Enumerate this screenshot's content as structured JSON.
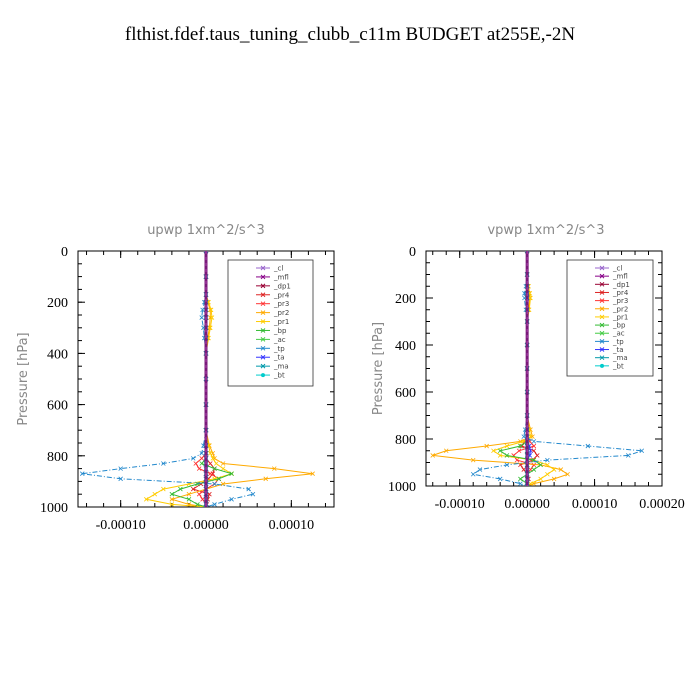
{
  "title": "flthist.fdef.taus_tuning_clubb_c11m  BUDGET at255E,-2N",
  "chart_data": [
    {
      "type": "line",
      "title": "upwp   1xm^2/s^3",
      "ylabel": "Pressure [hPa]",
      "xlabel": "",
      "ylim": [
        1000,
        0
      ],
      "xlim": [
        -0.00015,
        0.00015
      ],
      "xticks": [
        -0.0001,
        0.0,
        0.0001
      ],
      "xtick_labels": [
        "-0.00010",
        "0.00000",
        "0.00010"
      ],
      "yticks": [
        0,
        200,
        400,
        600,
        800,
        1000
      ],
      "ytick_labels": [
        "0",
        "200",
        "400",
        "600",
        "800",
        "1000"
      ],
      "legend": "top-right",
      "y": [
        0,
        100,
        170,
        200,
        230,
        260,
        300,
        340,
        400,
        500,
        600,
        700,
        760,
        790,
        810,
        830,
        850,
        870,
        890,
        910,
        930,
        950,
        970,
        990,
        1000
      ],
      "series": [
        {
          "name": "_cl",
          "color": "#9966cc",
          "marker": "x",
          "values": [
            0,
            0,
            0,
            0,
            0,
            0,
            0,
            0,
            0,
            0,
            0,
            0,
            0,
            0,
            0,
            0,
            0,
            0,
            0,
            0,
            0,
            0,
            0,
            0,
            0
          ]
        },
        {
          "name": "_mfl",
          "color": "#880088",
          "marker": "x",
          "values": [
            0,
            0,
            0,
            0,
            0,
            0,
            0,
            0,
            0,
            0,
            0,
            0,
            0,
            0,
            0,
            0,
            0,
            0,
            0,
            0,
            0,
            0,
            0,
            0,
            0
          ]
        },
        {
          "name": "_dp1",
          "color": "#990033",
          "marker": "x",
          "values": [
            0,
            0,
            0,
            0,
            0,
            0,
            0,
            0,
            0,
            0,
            0,
            0,
            0,
            0,
            0,
            0,
            0,
            0,
            0,
            0,
            0,
            0,
            0,
            0,
            0
          ]
        },
        {
          "name": "_pr4",
          "color": "#dd2222",
          "marker": "x",
          "values": [
            0,
            0,
            0,
            0,
            0,
            0,
            0,
            0,
            0,
            0,
            0,
            0,
            0,
            0,
            0,
            5e-06,
            1e-05,
            8e-06,
            3e-06,
            -6e-06,
            -1.5e-05,
            4e-06,
            2e-06,
            1e-06,
            0
          ]
        },
        {
          "name": "_pr3",
          "color": "#ff3333",
          "marker": "x",
          "values": [
            0,
            0,
            0,
            0,
            0,
            0,
            0,
            0,
            0,
            0,
            0,
            0,
            0,
            0,
            -5e-06,
            -1.2e-05,
            -8e-06,
            5e-06,
            1.5e-05,
            1e-05,
            0,
            -8e-06,
            -4e-06,
            0,
            0
          ]
        },
        {
          "name": "_pr2",
          "color": "#ffaa00",
          "marker": "x",
          "values": [
            0,
            0,
            0,
            2e-06,
            5e-06,
            5e-06,
            4e-06,
            2e-06,
            0,
            0,
            0,
            0,
            4e-06,
            8e-06,
            1e-05,
            2e-05,
            8e-05,
            0.000125,
            7e-05,
            2e-05,
            0,
            -2e-05,
            -4e-05,
            -2e-05,
            0
          ]
        },
        {
          "name": "_pr1",
          "color": "#ffcc00",
          "marker": "x",
          "values": [
            0,
            0,
            0,
            3e-06,
            6e-06,
            7e-06,
            5e-06,
            3e-06,
            0,
            0,
            0,
            0,
            3e-06,
            5e-06,
            8e-06,
            1.2e-05,
            2e-05,
            3e-05,
            1e-05,
            -2e-05,
            -5e-05,
            -6e-05,
            -7e-05,
            -4e-05,
            0
          ]
        },
        {
          "name": "_bp",
          "color": "#33bb33",
          "marker": "x",
          "values": [
            0,
            0,
            0,
            0,
            0,
            0,
            0,
            0,
            0,
            0,
            0,
            0,
            0,
            0,
            0,
            -5e-06,
            1e-05,
            3e-05,
            1.5e-05,
            -1e-05,
            -3e-05,
            -4e-05,
            -2e-05,
            -1e-05,
            0
          ]
        },
        {
          "name": "_ac",
          "color": "#44cc44",
          "marker": "x",
          "values": [
            0,
            0,
            0,
            0,
            0,
            0,
            0,
            0,
            0,
            0,
            0,
            0,
            0,
            0,
            0,
            0,
            0,
            0,
            0,
            0,
            0,
            0,
            0,
            0,
            0
          ]
        },
        {
          "name": "_tp",
          "color": "#2288cc",
          "marker": "x",
          "values": [
            0,
            0,
            0,
            -2e-06,
            -4e-06,
            -5e-06,
            -3e-06,
            -2e-06,
            0,
            0,
            0,
            0,
            -3e-06,
            -5e-06,
            -1.5e-05,
            -5e-05,
            -0.0001,
            -0.000145,
            -0.0001,
            1e-05,
            5e-05,
            5.5e-05,
            3e-05,
            1e-05,
            0
          ]
        },
        {
          "name": "_ta",
          "color": "#3333ff",
          "marker": "x",
          "values": [
            0,
            0,
            0,
            0,
            0,
            0,
            0,
            0,
            0,
            0,
            0,
            0,
            0,
            0,
            0,
            0,
            0,
            0,
            0,
            0,
            0,
            0,
            0,
            0,
            0
          ]
        },
        {
          "name": "_ma",
          "color": "#0099aa",
          "marker": "x",
          "values": [
            0,
            0,
            0,
            0,
            0,
            0,
            0,
            0,
            0,
            0,
            0,
            0,
            0,
            0,
            0,
            0,
            0,
            0,
            0,
            0,
            0,
            0,
            0,
            0,
            0
          ]
        },
        {
          "name": "_bt",
          "color": "#00cccc",
          "marker": "o",
          "values": [
            0,
            0,
            0,
            0,
            0,
            0,
            0,
            0,
            0,
            0,
            0,
            0,
            0,
            0,
            0,
            0,
            0,
            0,
            0,
            0,
            0,
            0,
            0,
            0,
            0
          ]
        }
      ]
    },
    {
      "type": "line",
      "title": "vpwp   1xm^2/s^3",
      "ylabel": "Pressure [hPa]",
      "xlabel": "",
      "ylim": [
        1000,
        0
      ],
      "xlim": [
        -0.00015,
        0.0002
      ],
      "xticks": [
        -0.0001,
        0.0,
        0.0001,
        0.0002
      ],
      "xtick_labels": [
        "-0.00010",
        "0.00000",
        "0.00010",
        "0.00020"
      ],
      "yticks": [
        0,
        200,
        400,
        600,
        800,
        1000
      ],
      "ytick_labels": [
        "0",
        "200",
        "400",
        "600",
        "800",
        "1000"
      ],
      "legend": "top-right",
      "y": [
        0,
        100,
        150,
        180,
        200,
        250,
        300,
        400,
        500,
        600,
        700,
        760,
        790,
        810,
        830,
        850,
        870,
        890,
        910,
        930,
        950,
        970,
        990,
        1000
      ],
      "series": [
        {
          "name": "_cl",
          "color": "#9966cc",
          "marker": "x",
          "values": [
            0,
            0,
            0,
            0,
            0,
            0,
            0,
            0,
            0,
            0,
            0,
            0,
            0,
            0,
            0,
            0,
            0,
            0,
            0,
            0,
            0,
            0,
            0,
            0
          ]
        },
        {
          "name": "_mfl",
          "color": "#880088",
          "marker": "x",
          "values": [
            0,
            0,
            0,
            0,
            0,
            0,
            0,
            0,
            0,
            0,
            0,
            0,
            0,
            0,
            0,
            0,
            0,
            0,
            0,
            0,
            0,
            0,
            0,
            0
          ]
        },
        {
          "name": "_dp1",
          "color": "#990033",
          "marker": "x",
          "values": [
            0,
            0,
            0,
            0,
            0,
            0,
            0,
            0,
            0,
            0,
            0,
            0,
            0,
            0,
            0,
            0,
            0,
            0,
            0,
            0,
            0,
            0,
            0,
            0
          ]
        },
        {
          "name": "_pr4",
          "color": "#dd2222",
          "marker": "x",
          "values": [
            0,
            0,
            0,
            0,
            0,
            0,
            0,
            0,
            0,
            0,
            0,
            0,
            0,
            -3e-06,
            -8e-06,
            1e-05,
            1.5e-05,
            8e-06,
            -1e-05,
            -5e-06,
            0,
            2e-06,
            0,
            0
          ]
        },
        {
          "name": "_pr3",
          "color": "#ff3333",
          "marker": "x",
          "values": [
            0,
            0,
            0,
            0,
            0,
            0,
            0,
            0,
            0,
            0,
            0,
            0,
            0,
            4e-06,
            1e-05,
            -1.2e-05,
            -2e-05,
            -1.5e-05,
            1e-05,
            5e-06,
            0,
            0,
            0,
            0
          ]
        },
        {
          "name": "_pr2",
          "color": "#ffaa00",
          "marker": "x",
          "values": [
            0,
            0,
            2e-06,
            3e-06,
            4e-06,
            2e-06,
            0,
            0,
            0,
            0,
            0,
            5e-06,
            8e-06,
            -1e-05,
            -6e-05,
            -0.00012,
            -0.00014,
            -8e-05,
            2e-05,
            5e-05,
            6e-05,
            4e-05,
            1e-05,
            0
          ]
        },
        {
          "name": "_pr1",
          "color": "#ffcc00",
          "marker": "x",
          "values": [
            0,
            0,
            2e-06,
            4e-06,
            5e-06,
            3e-06,
            0,
            0,
            0,
            0,
            0,
            3e-06,
            5e-06,
            -5e-06,
            -3e-05,
            -5e-05,
            -4e-05,
            1e-05,
            3e-05,
            4e-05,
            3e-05,
            2e-05,
            5e-06,
            0
          ]
        },
        {
          "name": "_bp",
          "color": "#33bb33",
          "marker": "x",
          "values": [
            0,
            0,
            0,
            0,
            0,
            0,
            0,
            0,
            0,
            0,
            0,
            0,
            0,
            0,
            -1e-05,
            -4e-05,
            -3e-05,
            1e-05,
            2e-05,
            1e-05,
            0,
            -1e-05,
            0,
            0
          ]
        },
        {
          "name": "_ac",
          "color": "#44cc44",
          "marker": "x",
          "values": [
            0,
            0,
            0,
            0,
            0,
            0,
            0,
            0,
            0,
            0,
            0,
            0,
            0,
            0,
            0,
            0,
            0,
            0,
            0,
            0,
            0,
            0,
            0,
            0
          ]
        },
        {
          "name": "_tp",
          "color": "#2288cc",
          "marker": "x",
          "values": [
            0,
            0,
            -2e-06,
            -4e-06,
            -4e-06,
            -2e-06,
            0,
            0,
            0,
            0,
            0,
            -3e-06,
            -5e-06,
            1e-05,
            9e-05,
            0.00017,
            0.00015,
            3e-05,
            -3e-05,
            -7e-05,
            -8e-05,
            -4e-05,
            -1e-05,
            0
          ]
        },
        {
          "name": "_ta",
          "color": "#3333ff",
          "marker": "x",
          "values": [
            0,
            0,
            0,
            0,
            0,
            0,
            0,
            0,
            0,
            0,
            0,
            0,
            0,
            0,
            3e-06,
            5e-06,
            4e-06,
            0,
            0,
            0,
            0,
            0,
            0,
            0
          ]
        },
        {
          "name": "_ma",
          "color": "#0099aa",
          "marker": "x",
          "values": [
            0,
            0,
            0,
            0,
            0,
            0,
            0,
            0,
            0,
            0,
            0,
            0,
            0,
            0,
            0,
            0,
            0,
            0,
            0,
            0,
            0,
            0,
            0,
            0
          ]
        },
        {
          "name": "_bt",
          "color": "#00cccc",
          "marker": "o",
          "values": [
            0,
            0,
            0,
            0,
            0,
            0,
            0,
            0,
            0,
            0,
            0,
            0,
            0,
            0,
            0,
            0,
            0,
            0,
            0,
            0,
            0,
            0,
            0,
            0
          ]
        }
      ]
    }
  ]
}
